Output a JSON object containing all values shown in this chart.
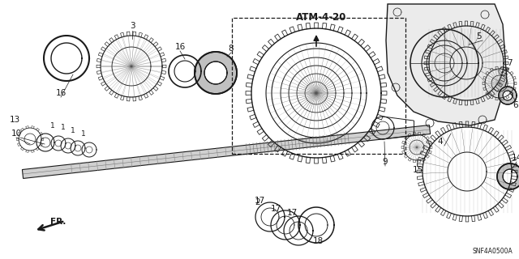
{
  "bg_color": "#ffffff",
  "label_atm": "ATM-4-20",
  "label_fr": "FR.",
  "label_snf": "SNF4A0500A",
  "dark": "#1a1a1a",
  "mid": "#555555",
  "light": "#999999",
  "fig_w": 6.4,
  "fig_h": 3.2,
  "dpi": 100
}
